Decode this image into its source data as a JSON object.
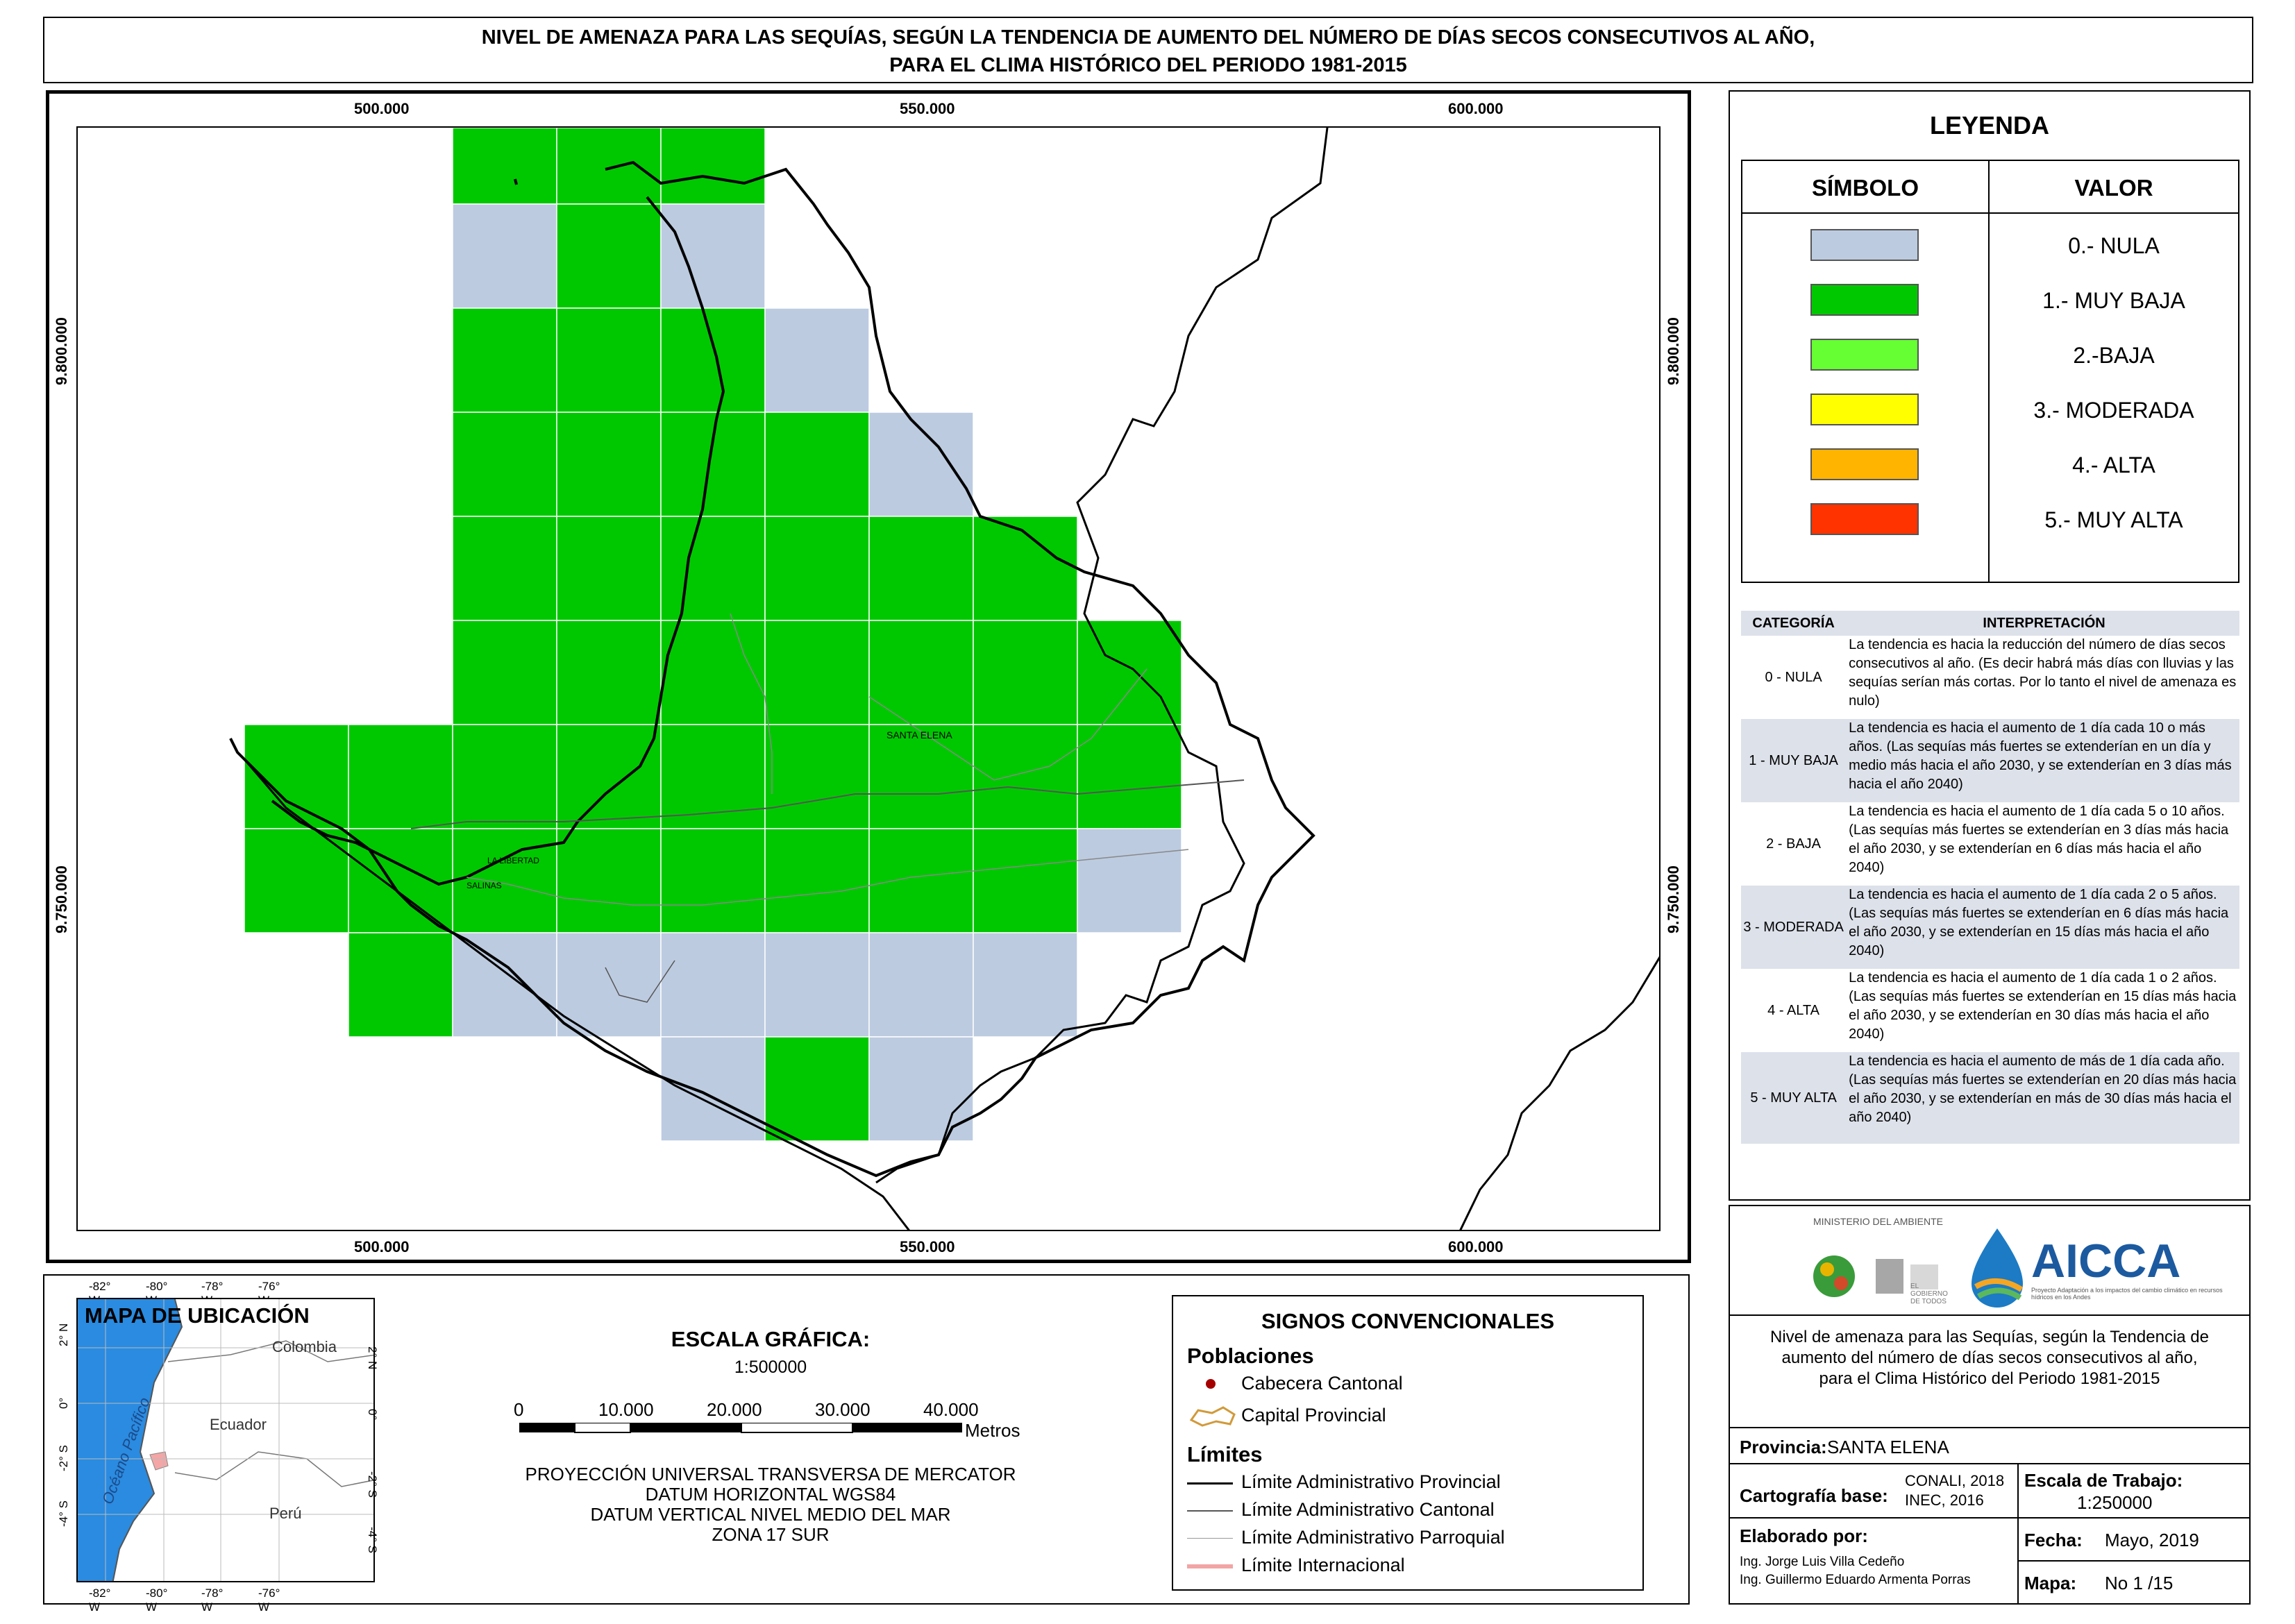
{
  "title": {
    "line1": "NIVEL DE AMENAZA PARA LAS SEQUÍAS, SEGÚN LA TENDENCIA DE AUMENTO DEL NÚMERO DE DÍAS SECOS CONSECUTIVOS AL AÑO,",
    "line2": "PARA EL CLIMA HISTÓRICO DEL PERIODO 1981-2015"
  },
  "map": {
    "x_ticks": [
      "500.000",
      "550.000",
      "600.000"
    ],
    "y_ticks": [
      "9.800.000",
      "9.750.000"
    ],
    "place_labels": {
      "santa_elena": "SANTA ELENA",
      "la_libertad": "LA LIBERTAD",
      "salinas": "SALINAS"
    },
    "colors": {
      "nula": "#bccbe0",
      "muy_baja": "#00c800",
      "baja": "#66ff33",
      "moderada": "#ffff00",
      "alta": "#ffb400",
      "muy_alta": "#ff3300"
    }
  },
  "legend": {
    "title": "LEYENDA",
    "col_symbol": "SÍMBOLO",
    "col_value": "VALOR",
    "items": [
      {
        "label": "0.- NULA",
        "color": "#bccbe0"
      },
      {
        "label": "1.- MUY BAJA",
        "color": "#00c800"
      },
      {
        "label": "2.-BAJA",
        "color": "#66ff33"
      },
      {
        "label": "3.- MODERADA",
        "color": "#ffff00"
      },
      {
        "label": "4.- ALTA",
        "color": "#ffb400"
      },
      {
        "label": "5.- MUY ALTA",
        "color": "#ff3300"
      }
    ]
  },
  "interpretation": {
    "col_category": "CATEGORÍA",
    "col_interpretation": "INTERPRETACIÓN",
    "rows": [
      {
        "category": "0 - NULA",
        "text": "La tendencia es hacia la reducción del número de días secos consecutivos al año. (Es decir habrá más días con lluvias y las sequías serían más cortas. Por lo tanto el nivel de amenaza es nulo)"
      },
      {
        "category": "1 - MUY BAJA",
        "text": "La tendencia es hacia el aumento de 1 día cada 10 o más años. (Las sequías más fuertes se extenderían en un día y medio más hacia el año 2030, y se extenderían en 3 días más hacia el año 2040)"
      },
      {
        "category": "2 - BAJA",
        "text": "La tendencia es hacia el aumento de 1 día cada 5 o 10 años. (Las sequías más fuertes se extenderían en 3 días más hacia el año 2030, y se extenderían en 6 días más hacia el año 2040)"
      },
      {
        "category": "3 - MODERADA",
        "text": "La tendencia es hacia el aumento de 1 día cada 2 o 5 años. (Las sequías más fuertes se extenderían en 6 días más hacia el año 2030, y se extenderían en 15 días más hacia el año 2040)"
      },
      {
        "category": "4 - ALTA",
        "text": "La tendencia es hacia el aumento de 1 día cada 1 o 2 años. (Las sequías más fuertes se extenderían en 15 días más hacia el año 2030, y se extenderían en 30 días más hacia el año 2040)"
      },
      {
        "category": "5 - MUY ALTA",
        "text": "La tendencia es hacia el aumento de más de 1 día cada año. (Las sequías más fuertes se extenderían en 20 días más hacia el año 2030, y se extenderían en más de 30 días más hacia el año 2040)"
      }
    ]
  },
  "location_map": {
    "title": "MAPA DE UBICACIÓN",
    "lon_ticks": [
      "-82° W",
      "-80° W",
      "-78° W",
      "-76° W"
    ],
    "lat_ticks": [
      "2° N",
      "0°",
      "-2° S",
      "-4° S"
    ],
    "labels": {
      "colombia": "Colombia",
      "ecuador": "Ecuador",
      "peru": "Perú",
      "ocean": "Océano Pacífico"
    }
  },
  "scale": {
    "title": "ESCALA GRÁFICA:",
    "ratio": "1:500000",
    "ticks": [
      "0",
      "10.000",
      "20.000",
      "30.000",
      "40.000"
    ],
    "unit": "Metros",
    "projection": [
      "PROYECCIÓN UNIVERSAL TRANSVERSA DE MERCATOR",
      "DATUM HORIZONTAL WGS84",
      "DATUM VERTICAL NIVEL MEDIO DEL MAR",
      "ZONA 17 SUR"
    ]
  },
  "signs": {
    "title": "SIGNOS CONVENCIONALES",
    "poblaciones": "Poblaciones",
    "cabecera": "Cabecera Cantonal",
    "capital": "Capital Provincial",
    "limites": "Límites",
    "lim_prov": "Límite Administrativo Provincial",
    "lim_cant": "Límite Administrativo Cantonal",
    "lim_parr": "Límite Administrativo Parroquial",
    "lim_int": "Límite Internacional"
  },
  "info": {
    "ministerio": "MINISTERIO DEL AMBIENTE",
    "gobierno": "EL GOBIERNO DE TODOS",
    "aicca": "AICCA",
    "aicca_sub": "Proyecto Adaptación a los impactos del cambio climático en recursos hídricos en los Andes",
    "description": [
      "Nivel de amenaza para las Sequías, según la Tendencia de",
      "aumento del número de días secos consecutivos al año,",
      "para el Clima Histórico del Periodo 1981-2015"
    ],
    "provincia_label": "Provincia:",
    "provincia": "SANTA ELENA",
    "cartografia_label": "Cartografía base:",
    "cartografia": [
      "CONALI, 2018",
      "INEC, 2016"
    ],
    "escala_label": "Escala de Trabajo:",
    "escala": "1:250000",
    "elaborado_label": "Elaborado por:",
    "autores": [
      "Ing. Jorge Luis Villa Cedeño",
      "Ing. Guillermo Eduardo Armenta Porras"
    ],
    "fecha_label": "Fecha:",
    "fecha": "Mayo, 2019",
    "mapa_label": "Mapa:",
    "mapa": "No 1 /15"
  }
}
